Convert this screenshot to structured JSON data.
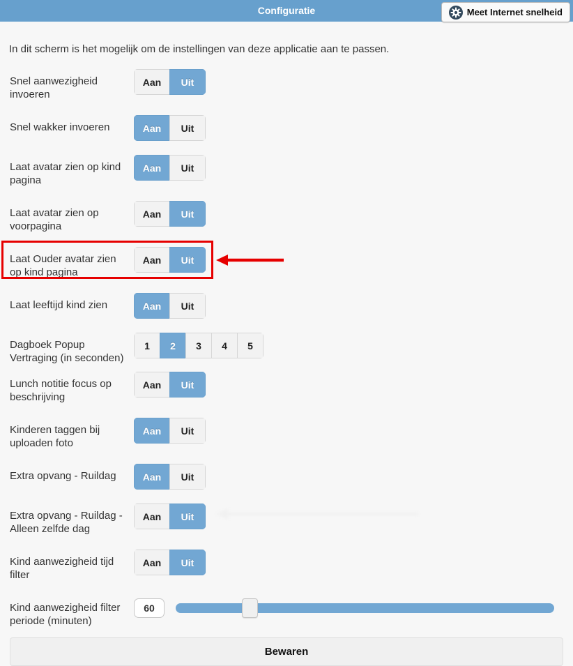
{
  "header": {
    "title": "Configuratie",
    "speed_button": {
      "label": "Meet Internet snelheid",
      "icon": "gear-icon"
    }
  },
  "intro": "In dit scherm is het mogelijk om de instellingen van deze applicatie aan te passen.",
  "toggle": {
    "on": "Aan",
    "off": "Uit"
  },
  "settings": [
    {
      "label": "Snel aanwezigheid invoeren",
      "type": "toggle",
      "value": "Uit"
    },
    {
      "label": "Snel wakker invoeren",
      "type": "toggle",
      "value": "Aan"
    },
    {
      "label": "Laat avatar zien op kind pagina",
      "type": "toggle",
      "value": "Aan"
    },
    {
      "label": "Laat avatar zien op voorpagina",
      "type": "toggle",
      "value": "Uit"
    },
    {
      "label": "Laat Ouder avatar zien op kind pagina",
      "type": "toggle",
      "value": "Uit",
      "highlighted": true
    },
    {
      "label": "Laat leeftijd kind zien",
      "type": "toggle",
      "value": "Aan"
    },
    {
      "label": "Dagboek Popup Vertraging (in seconden)",
      "type": "segmented",
      "options": [
        "1",
        "2",
        "3",
        "4",
        "5"
      ],
      "value": "2"
    },
    {
      "label": "Lunch notitie focus op beschrijving",
      "type": "toggle",
      "value": "Uit"
    },
    {
      "label": "Kinderen taggen bij uploaden foto",
      "type": "toggle",
      "value": "Aan"
    },
    {
      "label": "Extra opvang - Ruildag",
      "type": "toggle",
      "value": "Aan"
    },
    {
      "label": "Extra opvang - Ruildag - Alleen zelfde dag",
      "type": "toggle",
      "value": "Uit",
      "ghost_arrow": true
    },
    {
      "label": "Kind aanwezigheid tijd filter",
      "type": "toggle",
      "value": "Uit"
    },
    {
      "label": "Kind aanwezigheid filter periode (minuten)",
      "type": "slider",
      "value": "60",
      "handle_pct": 17.5
    }
  ],
  "annotation": {
    "highlighted_setting": "Laat Ouder avatar zien op kind pagina",
    "highlight_color": "#e60000",
    "arrow_direction": "left"
  },
  "save_button": "Bewaren",
  "colors": {
    "header_blue": "#67a0cd",
    "accent_blue": "#72a7d3",
    "highlight_red": "#e60000",
    "page_background": "#f7f7f7"
  }
}
